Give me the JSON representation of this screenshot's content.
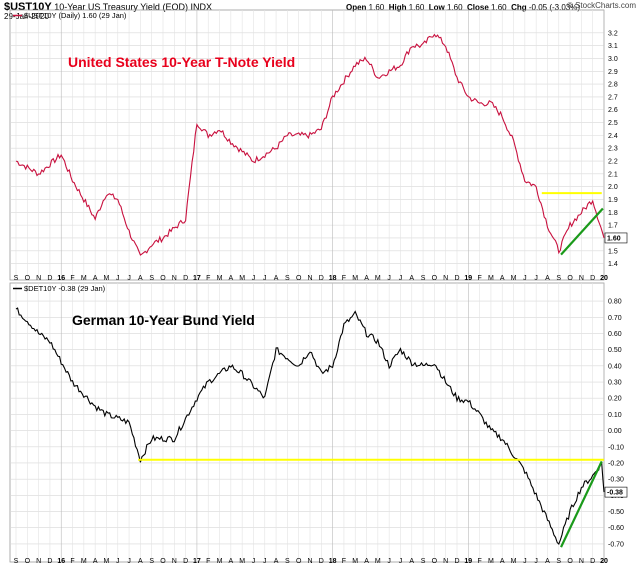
{
  "header": {
    "symbol": "$UST10Y",
    "description": "10-Year US Treasury Yield (EOD)",
    "exchange": "INDX",
    "date": "29-Jan-2020",
    "open_label": "Open",
    "open": "1.60",
    "high_label": "High",
    "high": "1.60",
    "low_label": "Low",
    "low": "1.60",
    "close_label": "Close",
    "close": "1.60",
    "chg_label": "Chg",
    "chg": "-0.05 (-3.03%)",
    "brand": "© StockCharts.com"
  },
  "x_axis": {
    "labels": [
      "S",
      "O",
      "N",
      "D",
      "16",
      "F",
      "M",
      "A",
      "M",
      "J",
      "J",
      "A",
      "S",
      "O",
      "N",
      "D",
      "17",
      "F",
      "M",
      "A",
      "M",
      "J",
      "J",
      "A",
      "S",
      "O",
      "N",
      "D",
      "18",
      "F",
      "M",
      "A",
      "M",
      "J",
      "J",
      "A",
      "S",
      "O",
      "N",
      "D",
      "19",
      "F",
      "M",
      "A",
      "M",
      "J",
      "J",
      "A",
      "S",
      "O",
      "N",
      "D",
      "20"
    ],
    "bold_labels": [
      "16",
      "17",
      "18",
      "19",
      "20"
    ]
  },
  "chart_data": [
    {
      "type": "line",
      "legend": "$UST10Y (Daily) 1.60 (29 Jan)",
      "annotation": "United States 10-Year T-Note Yield",
      "annotation_color": "#e8001c",
      "line_color": "#c8103e",
      "ylim": [
        1.35,
        3.3
      ],
      "yticks": [
        "3.2",
        "3.1",
        "3.0",
        "2.9",
        "2.8",
        "2.7",
        "2.6",
        "2.5",
        "2.4",
        "2.3",
        "2.2",
        "2.1",
        "2.0",
        "1.9",
        "1.8",
        "1.7",
        "1.6",
        "1.5",
        "1.4"
      ],
      "last_value_label": "1.60",
      "series_points": [
        [
          0,
          2.2
        ],
        [
          2,
          2.1
        ],
        [
          4,
          2.25
        ],
        [
          5,
          2.05
        ],
        [
          7,
          1.75
        ],
        [
          8,
          1.95
        ],
        [
          9,
          1.9
        ],
        [
          10,
          1.65
        ],
        [
          11,
          1.45
        ],
        [
          12,
          1.55
        ],
        [
          13,
          1.6
        ],
        [
          15,
          1.75
        ],
        [
          16,
          2.5
        ],
        [
          17,
          2.4
        ],
        [
          18,
          2.45
        ],
        [
          19,
          2.35
        ],
        [
          21,
          2.2
        ],
        [
          23,
          2.3
        ],
        [
          24,
          2.4
        ],
        [
          26,
          2.4
        ],
        [
          27,
          2.45
        ],
        [
          28,
          2.7
        ],
        [
          30,
          2.95
        ],
        [
          31,
          3.0
        ],
        [
          32,
          2.85
        ],
        [
          34,
          2.95
        ],
        [
          35,
          3.1
        ],
        [
          36,
          3.1
        ],
        [
          37,
          3.2
        ],
        [
          38,
          3.1
        ],
        [
          39,
          2.85
        ],
        [
          40,
          2.7
        ],
        [
          41,
          2.65
        ],
        [
          42,
          2.65
        ],
        [
          43,
          2.55
        ],
        [
          44,
          2.35
        ],
        [
          45,
          2.05
        ],
        [
          46,
          2.0
        ],
        [
          47,
          1.7
        ],
        [
          48,
          1.5
        ],
        [
          49,
          1.7
        ],
        [
          50,
          1.8
        ],
        [
          51,
          1.9
        ],
        [
          52,
          1.6
        ]
      ],
      "support_line": {
        "x_start": 46.5,
        "x_end": 51.8,
        "y": 1.95,
        "color": "#ffff00"
      },
      "trend_line": {
        "x_start": 48.2,
        "y_start": 1.47,
        "x_end": 51.9,
        "y_end": 1.83,
        "color": "#1a9a1a"
      }
    },
    {
      "type": "line",
      "legend": "$DET10Y -0.38 (29 Jan)",
      "annotation": "German 10-Year Bund Yield",
      "annotation_color": "#000000",
      "line_color": "#000000",
      "ylim": [
        -0.75,
        0.85
      ],
      "yticks": [
        "0.80",
        "0.70",
        "0.60",
        "0.50",
        "0.40",
        "0.30",
        "0.20",
        "0.10",
        "0.00",
        "-0.10",
        "-0.20",
        "-0.30",
        "-0.40",
        "-0.50",
        "-0.60",
        "-0.70"
      ],
      "last_value_label": "-0.38",
      "series_points": [
        [
          0,
          0.75
        ],
        [
          1,
          0.68
        ],
        [
          2,
          0.6
        ],
        [
          3,
          0.55
        ],
        [
          5,
          0.3
        ],
        [
          7,
          0.15
        ],
        [
          8,
          0.1
        ],
        [
          10,
          0.05
        ],
        [
          11,
          -0.18
        ],
        [
          12,
          -0.05
        ],
        [
          14,
          -0.05
        ],
        [
          16,
          0.2
        ],
        [
          17,
          0.3
        ],
        [
          19,
          0.4
        ],
        [
          20,
          0.35
        ],
        [
          22,
          0.2
        ],
        [
          23,
          0.5
        ],
        [
          25,
          0.4
        ],
        [
          26,
          0.5
        ],
        [
          27,
          0.35
        ],
        [
          28,
          0.4
        ],
        [
          29,
          0.65
        ],
        [
          30,
          0.72
        ],
        [
          31,
          0.6
        ],
        [
          32,
          0.55
        ],
        [
          33,
          0.4
        ],
        [
          34,
          0.5
        ],
        [
          35,
          0.42
        ],
        [
          36,
          0.4
        ],
        [
          37,
          0.42
        ],
        [
          38,
          0.3
        ],
        [
          39,
          0.2
        ],
        [
          40,
          0.18
        ],
        [
          41,
          0.1
        ],
        [
          42,
          0.0
        ],
        [
          43,
          -0.05
        ],
        [
          44,
          -0.15
        ],
        [
          45,
          -0.25
        ],
        [
          46,
          -0.4
        ],
        [
          47,
          -0.55
        ],
        [
          48,
          -0.7
        ],
        [
          49,
          -0.5
        ],
        [
          50,
          -0.35
        ],
        [
          51,
          -0.28
        ],
        [
          51.8,
          -0.2
        ],
        [
          52,
          -0.38
        ]
      ],
      "support_line": {
        "x_start": 10.8,
        "x_end": 52.0,
        "y": -0.18,
        "color": "#ffff00"
      },
      "trend_line": {
        "x_start": 48.2,
        "y_start": -0.72,
        "x_end": 51.8,
        "y_end": -0.19,
        "color": "#1a9a1a"
      }
    }
  ]
}
